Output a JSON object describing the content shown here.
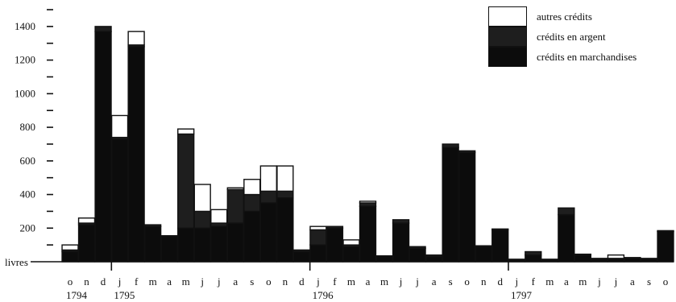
{
  "chart_data": {
    "type": "bar",
    "stacked": true,
    "ylabel": "livres",
    "ylim": [
      0,
      1500
    ],
    "yticks": [
      200,
      400,
      600,
      800,
      1000,
      1200,
      1400
    ],
    "colors": {
      "autres": "#ffffff",
      "argent": "#1e1e1e",
      "marchandises": "#0c0c0c",
      "outline": "#111111"
    },
    "legend": [
      {
        "key": "autres",
        "label": "autres crédits"
      },
      {
        "key": "argent",
        "label": "crédits en argent"
      },
      {
        "key": "marchandises",
        "label": "crédits en marchandises"
      }
    ],
    "month_labels": [
      "o",
      "n",
      "d",
      "j",
      "f",
      "m",
      "a",
      "m",
      "j",
      "j",
      "a",
      "s",
      "o",
      "n",
      "d",
      "j",
      "f",
      "m",
      "a",
      "m",
      "j",
      "j",
      "a",
      "s",
      "o",
      "n",
      "d",
      "j",
      "f",
      "m",
      "a",
      "m",
      "j",
      "j",
      "a",
      "s",
      "o"
    ],
    "year_labels": [
      {
        "text": "1794",
        "index": 0
      },
      {
        "text": "1795",
        "index": 3
      },
      {
        "text": "1796",
        "index": 15
      },
      {
        "text": "1797",
        "index": 27
      }
    ],
    "series": [
      {
        "name": "crédits en marchandises",
        "key": "marchandises",
        "values": [
          60,
          220,
          1370,
          730,
          1280,
          210,
          150,
          200,
          200,
          210,
          230,
          300,
          350,
          380,
          60,
          100,
          200,
          90,
          330,
          30,
          230,
          80,
          30,
          680,
          650,
          90,
          190,
          10,
          40,
          10,
          280,
          40,
          10,
          15,
          20,
          15,
          180
        ]
      },
      {
        "name": "crédits en argent",
        "key": "argent",
        "values": [
          10,
          10,
          30,
          10,
          10,
          10,
          5,
          560,
          100,
          20,
          200,
          100,
          70,
          40,
          10,
          90,
          10,
          10,
          20,
          5,
          20,
          10,
          10,
          20,
          10,
          5,
          5,
          5,
          20,
          5,
          40,
          5,
          5,
          5,
          5,
          5,
          5
        ]
      },
      {
        "name": "autres crédits",
        "key": "autres",
        "values": [
          30,
          30,
          0,
          130,
          80,
          0,
          0,
          30,
          160,
          80,
          10,
          90,
          150,
          150,
          0,
          20,
          0,
          30,
          10,
          0,
          0,
          0,
          0,
          0,
          0,
          0,
          0,
          0,
          0,
          0,
          0,
          0,
          5,
          20,
          0,
          0,
          0
        ]
      }
    ]
  }
}
